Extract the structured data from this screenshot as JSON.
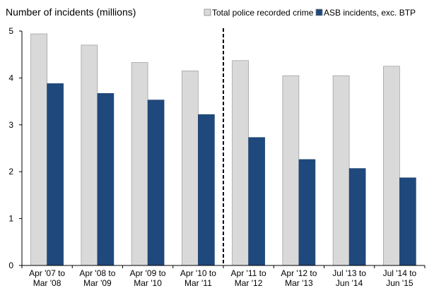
{
  "chart_data": {
    "type": "bar",
    "ylabel": "Number of incidents (millions)",
    "ylim": [
      0,
      5
    ],
    "yticks": [
      "0",
      "1",
      "2",
      "3",
      "4",
      "5"
    ],
    "categories": [
      [
        "Apr '07 to",
        "Mar '08"
      ],
      [
        "Apr '08 to",
        "Mar '09"
      ],
      [
        "Apr '09 to",
        "Mar '10"
      ],
      [
        "Apr '10 to",
        "Mar '11"
      ],
      [
        "Apr '11 to",
        "Mar '12"
      ],
      [
        "Apr '12 to",
        "Mar '13"
      ],
      [
        "Jul '13 to",
        "Jun '14"
      ],
      [
        "Jul '14 to",
        "Jun '15"
      ]
    ],
    "series": [
      {
        "name": "Total police recorded crime",
        "color": "#d9d9d9",
        "values": [
          4.94,
          4.7,
          4.33,
          4.15,
          4.37,
          4.05,
          4.05,
          4.25
        ]
      },
      {
        "name": "ASB incidents, exc. BTP",
        "color": "#1f497d",
        "values": [
          3.88,
          3.67,
          3.53,
          3.22,
          2.73,
          2.26,
          2.07,
          1.87
        ]
      }
    ],
    "divider_after_index": 3,
    "grid": false,
    "legend_position": "top-right"
  }
}
